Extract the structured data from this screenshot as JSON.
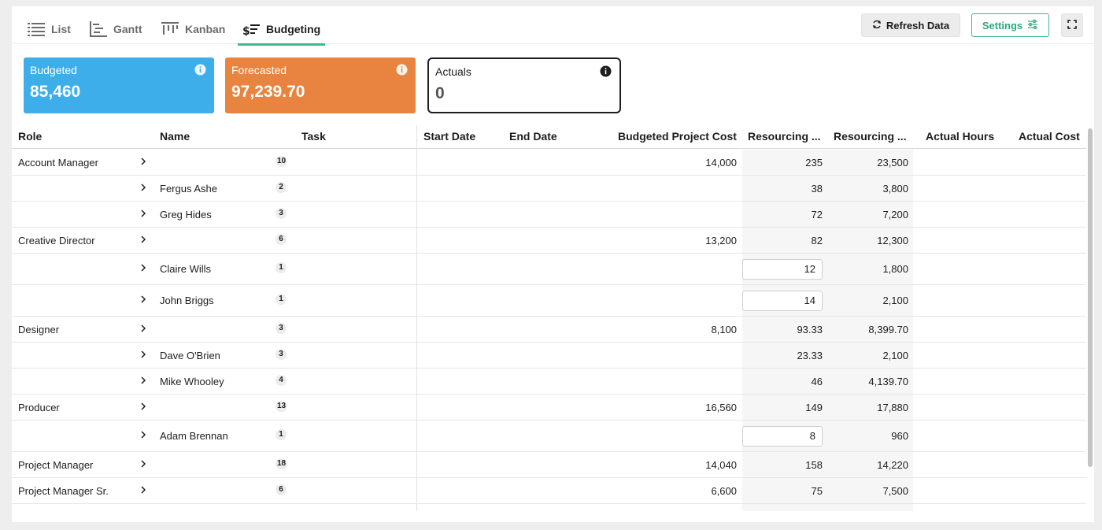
{
  "tabs": [
    {
      "label": "List",
      "icon": "list-icon"
    },
    {
      "label": "Gantt",
      "icon": "gantt-icon"
    },
    {
      "label": "Kanban",
      "icon": "kanban-icon"
    },
    {
      "label": "Budgeting",
      "icon": "budget-icon",
      "active": true
    }
  ],
  "toolbar": {
    "refresh_label": "Refresh Data",
    "settings_label": "Settings"
  },
  "cards": {
    "budgeted": {
      "title": "Budgeted",
      "value": "85,460",
      "color": "#3eaeeb"
    },
    "forecasted": {
      "title": "Forecasted",
      "value": "97,239.70",
      "color": "#e8843f"
    },
    "actuals": {
      "title": "Actuals",
      "value": "0"
    }
  },
  "columns": {
    "role": "Role",
    "name": "Name",
    "task": "Task",
    "start": "Start Date",
    "end": "End Date",
    "budgeted_cost": "Budgeted Project Cost",
    "res_hours": "Resourcing ...",
    "res_cost": "Resourcing ...",
    "actual_hours": "Actual Hours",
    "actual_cost": "Actual Cost"
  },
  "rows": [
    {
      "role": "Account Manager",
      "name": "",
      "count": "10",
      "budget": "14,000",
      "hours": "235",
      "cost": "23,500",
      "editable": false
    },
    {
      "role": "",
      "name": "Fergus Ashe",
      "count": "2",
      "budget": "",
      "hours": "38",
      "cost": "3,800",
      "editable": false
    },
    {
      "role": "",
      "name": "Greg Hides",
      "count": "3",
      "budget": "",
      "hours": "72",
      "cost": "7,200",
      "editable": false
    },
    {
      "role": "Creative Director",
      "name": "",
      "count": "6",
      "budget": "13,200",
      "hours": "82",
      "cost": "12,300",
      "editable": false
    },
    {
      "role": "",
      "name": "Claire Wills",
      "count": "1",
      "budget": "",
      "hours": "12",
      "cost": "1,800",
      "editable": true
    },
    {
      "role": "",
      "name": "John Briggs",
      "count": "1",
      "budget": "",
      "hours": "14",
      "cost": "2,100",
      "editable": true
    },
    {
      "role": "Designer",
      "name": "",
      "count": "3",
      "budget": "8,100",
      "hours": "93.33",
      "cost": "8,399.70",
      "editable": false
    },
    {
      "role": "",
      "name": "Dave O'Brien",
      "count": "3",
      "budget": "",
      "hours": "23.33",
      "cost": "2,100",
      "editable": false
    },
    {
      "role": "",
      "name": "Mike Whooley",
      "count": "4",
      "budget": "",
      "hours": "46",
      "cost": "4,139.70",
      "editable": false
    },
    {
      "role": "Producer",
      "name": "",
      "count": "13",
      "budget": "16,560",
      "hours": "149",
      "cost": "17,880",
      "editable": false
    },
    {
      "role": "",
      "name": "Adam Brennan",
      "count": "1",
      "budget": "",
      "hours": "8",
      "cost": "960",
      "editable": true
    },
    {
      "role": "Project Manager",
      "name": "",
      "count": "18",
      "budget": "14,040",
      "hours": "158",
      "cost": "14,220",
      "editable": false
    },
    {
      "role": "Project Manager Sr.",
      "name": "",
      "count": "6",
      "budget": "6,600",
      "hours": "75",
      "cost": "7,500",
      "editable": false
    }
  ]
}
